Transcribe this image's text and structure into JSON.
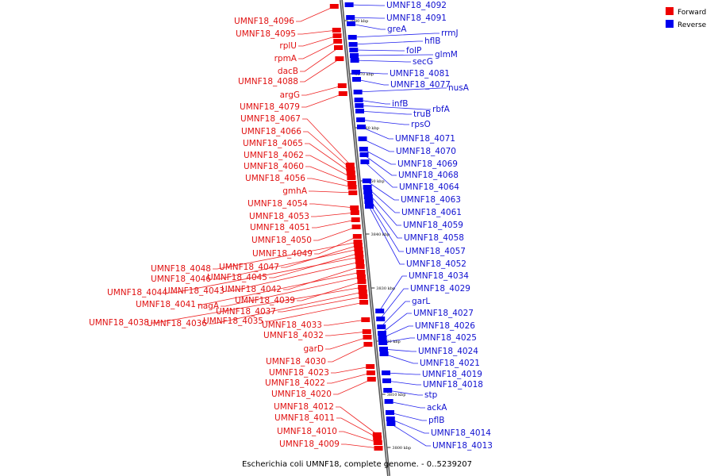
{
  "caption": "Escherichia coli UMNF18, complete genome. - 0..5239207",
  "legend": [
    {
      "label": "Forward",
      "color": "#ee0000"
    },
    {
      "label": "Reverse",
      "color": "#0000ee"
    }
  ],
  "ticks": [
    "3880 kbp",
    "3870 kbp",
    "3860 kbp",
    "3850 kbp",
    "3840 kbp",
    "3830 kbp",
    "3820 kbp",
    "3810 kbp",
    "3800 kbp"
  ],
  "forward_genes": [
    "UMNF18_4096",
    "UMNF18_4095",
    "rplU",
    "rpmA",
    "dacB",
    "UMNF18_4088",
    "argG",
    "UMNF18_4079",
    "UMNF18_4067",
    "UMNF18_4066",
    "UMNF18_4065",
    "UMNF18_4062",
    "UMNF18_4060",
    "UMNF18_4056",
    "gmhA",
    "UMNF18_4054",
    "UMNF18_4053",
    "UMNF18_4051",
    "UMNF18_4050",
    "UMNF18_4049",
    "UMNF18_4048",
    "UMNF18_4047",
    "UMNF18_4046",
    "UMNF18_4045",
    "UMNF18_4044",
    "UMNF18_4043",
    "UMNF18_4042",
    "UMNF18_4041",
    "nagA",
    "UMNF18_4039",
    "UMNF18_4038",
    "UMNF18_4036",
    "UMNF18_4037",
    "UMNF18_4035",
    "UMNF18_4033",
    "UMNF18_4032",
    "garD",
    "UMNF18_4030",
    "UMNF18_4023",
    "UMNF18_4022",
    "UMNF18_4020",
    "UMNF18_4012",
    "UMNF18_4011",
    "UMNF18_4010",
    "UMNF18_4009"
  ],
  "reverse_genes": [
    "UMNF18_4092",
    "UMNF18_4091",
    "greA",
    "rrmJ",
    "hflB",
    "folP",
    "glmM",
    "secG",
    "UMNF18_4081",
    "UMNF18_4077",
    "nusA",
    "infB",
    "rbfA",
    "truB",
    "rpsO",
    "UMNF18_4071",
    "UMNF18_4070",
    "UMNF18_4069",
    "UMNF18_4068",
    "UMNF18_4064",
    "UMNF18_4063",
    "UMNF18_4061",
    "UMNF18_4059",
    "UMNF18_4058",
    "UMNF18_4057",
    "UMNF18_4052",
    "UMNF18_4034",
    "UMNF18_4029",
    "garL",
    "UMNF18_4027",
    "UMNF18_4026",
    "UMNF18_4025",
    "UMNF18_4024",
    "UMNF18_4021",
    "UMNF18_4019",
    "UMNF18_4018",
    "stp",
    "ackA",
    "pflB",
    "UMNF18_4014",
    "UMNF18_4013"
  ]
}
